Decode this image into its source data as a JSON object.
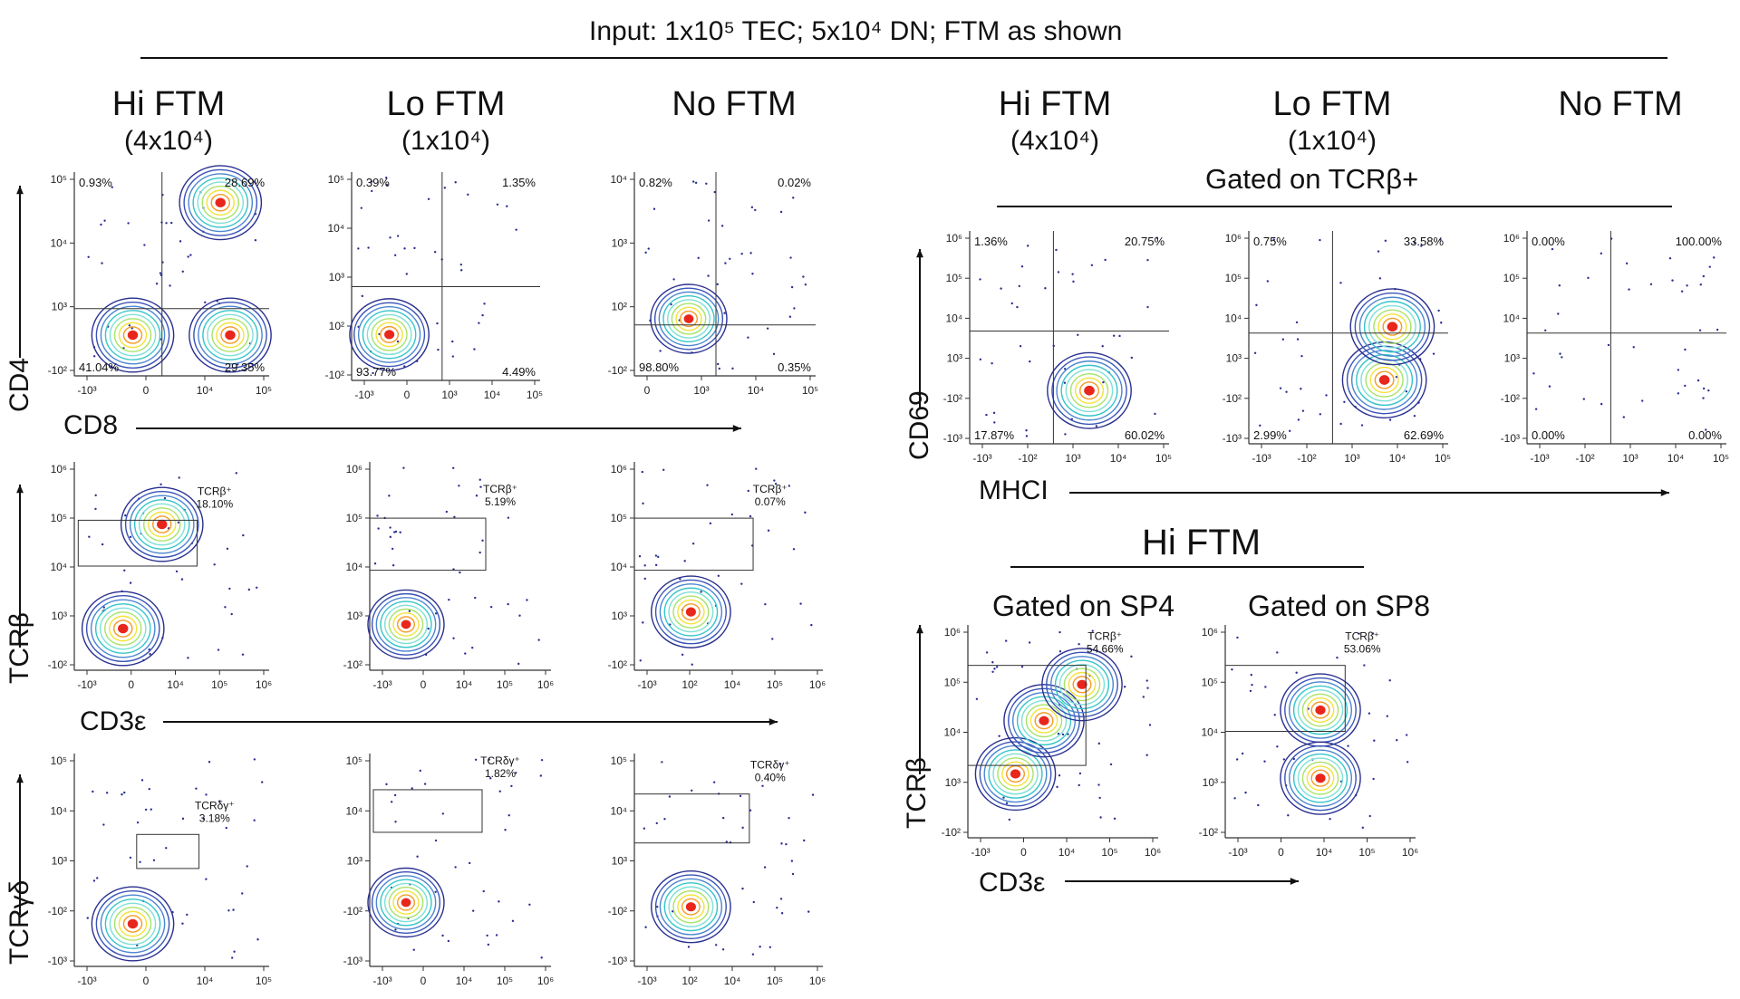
{
  "figure": {
    "input_label": "Input: 1x10⁵ TEC; 5x10⁴ DN; FTM as shown",
    "column_headers": [
      {
        "title": "Hi FTM",
        "sub": "(4x10⁴)"
      },
      {
        "title": "Lo FTM",
        "sub": "(1x10⁴)"
      },
      {
        "title": "No FTM",
        "sub": ""
      }
    ],
    "right_column_headers": [
      {
        "title": "Hi FTM",
        "sub": "(4x10⁴)"
      },
      {
        "title": "Lo FTM",
        "sub": "(1x10⁴)"
      },
      {
        "title": "No FTM",
        "sub": ""
      }
    ],
    "gated_tcrb": "Gated on TCRβ+",
    "hi_ftm_title": "Hi FTM",
    "gated_sp4": "Gated on SP4",
    "gated_sp8": "Gated on SP8",
    "axis_labels": {
      "cd4": "CD4",
      "cd8": "CD8",
      "tcrb": "TCRβ",
      "cd3e": "CD3ε",
      "tcrgd": "TCRγδ",
      "cd69": "CD69",
      "mhci": "MHCI"
    },
    "colors": {
      "contour_outer": "#2a2f8f",
      "contour_mid": "#36c5c9",
      "contour_core": "#e8261c"
    }
  },
  "chart_data": [
    {
      "type": "scatter",
      "id": "cd4cd8_hi",
      "xlabel": "CD8",
      "ylabel": "CD4",
      "x_ticks": [
        "-10³",
        "0",
        "10⁴",
        "10⁵"
      ],
      "y_ticks": [
        "10⁵",
        "10⁴",
        "10³",
        "-10²"
      ],
      "quadrants": {
        "upper_left": "0.93%",
        "upper_right": "28.69%",
        "lower_left": "41.04%",
        "lower_right": "29.35%"
      },
      "populations": [
        {
          "x": 0.3,
          "y": 0.2
        },
        {
          "x": 0.8,
          "y": 0.2
        },
        {
          "x": 0.75,
          "y": 0.85
        }
      ]
    },
    {
      "type": "scatter",
      "id": "cd4cd8_lo",
      "xlabel": "CD8",
      "ylabel": "CD4",
      "x_ticks": [
        "-10³",
        "0",
        "10³",
        "10⁴",
        "10⁵"
      ],
      "y_ticks": [
        "10⁵",
        "10⁴",
        "10³",
        "10²",
        "-10²"
      ],
      "quadrants": {
        "upper_left": "0.39%",
        "upper_right": "1.35%",
        "lower_left": "93.77%",
        "lower_right": "4.49%"
      },
      "populations": [
        {
          "x": 0.2,
          "y": 0.22
        }
      ]
    },
    {
      "type": "scatter",
      "id": "cd4cd8_no",
      "xlabel": "CD8",
      "ylabel": "CD4",
      "x_ticks": [
        "0",
        "10³",
        "10⁴",
        "10⁵"
      ],
      "y_ticks": [
        "10⁴",
        "10³",
        "10²",
        "-10²"
      ],
      "quadrants": {
        "upper_left": "0.82%",
        "upper_right": "0.02%",
        "lower_left": "98.80%",
        "lower_right": "0.35%"
      },
      "populations": [
        {
          "x": 0.3,
          "y": 0.28
        }
      ]
    },
    {
      "type": "scatter",
      "id": "tcrb_hi",
      "xlabel": "CD3ε",
      "ylabel": "TCRβ",
      "x_ticks": [
        "-10³",
        "0",
        "10⁴",
        "10⁵",
        "10⁶"
      ],
      "y_ticks": [
        "10⁶",
        "10⁵",
        "10⁴",
        "10³",
        "-10²"
      ],
      "gate_label": "TCRβ⁺",
      "gate_value": "18.10%",
      "populations": [
        {
          "x": 0.25,
          "y": 0.2
        },
        {
          "x": 0.45,
          "y": 0.7
        }
      ]
    },
    {
      "type": "scatter",
      "id": "tcrb_lo",
      "xlabel": "CD3ε",
      "ylabel": "TCRβ",
      "x_ticks": [
        "-10³",
        "0",
        "10⁴",
        "10⁵",
        "10⁶"
      ],
      "y_ticks": [
        "10⁶",
        "10⁵",
        "10⁴",
        "10³",
        "-10²"
      ],
      "gate_label": "TCRβ⁺",
      "gate_value": "5.19%",
      "populations": [
        {
          "x": 0.2,
          "y": 0.22
        }
      ]
    },
    {
      "type": "scatter",
      "id": "tcrb_no",
      "xlabel": "CD3ε",
      "ylabel": "TCRβ",
      "x_ticks": [
        "-10³",
        "10²",
        "10⁴",
        "10⁵",
        "10⁶"
      ],
      "y_ticks": [
        "10⁶",
        "10⁵",
        "10⁴",
        "10³",
        "-10²"
      ],
      "gate_label": "TCRβ⁺",
      "gate_value": "0.07%",
      "populations": [
        {
          "x": 0.3,
          "y": 0.28
        }
      ]
    },
    {
      "type": "scatter",
      "id": "tcrgd_hi",
      "xlabel": "CD3ε",
      "ylabel": "TCRγδ",
      "x_ticks": [
        "-10³",
        "0",
        "10⁴",
        "10⁵"
      ],
      "y_ticks": [
        "10⁵",
        "10⁴",
        "10³",
        "-10²",
        "-10³"
      ],
      "gate_label": "TCRδγ⁺",
      "gate_value": "3.18%",
      "populations": [
        {
          "x": 0.3,
          "y": 0.2
        }
      ]
    },
    {
      "type": "scatter",
      "id": "tcrgd_lo",
      "xlabel": "CD3ε",
      "ylabel": "TCRγδ",
      "x_ticks": [
        "-10³",
        "0",
        "10⁴",
        "10⁵",
        "10⁶"
      ],
      "y_ticks": [
        "10⁵",
        "10⁴",
        "10³",
        "-10²",
        "-10³"
      ],
      "gate_label": "TCRδγ⁺",
      "gate_value": "1.82%",
      "populations": [
        {
          "x": 0.2,
          "y": 0.3
        }
      ]
    },
    {
      "type": "scatter",
      "id": "tcrgd_no",
      "xlabel": "CD3ε",
      "ylabel": "TCRγδ",
      "x_ticks": [
        "-10³",
        "10²",
        "10⁴",
        "10⁵",
        "10⁶"
      ],
      "y_ticks": [
        "10⁵",
        "10⁴",
        "10³",
        "-10²",
        "-10³"
      ],
      "gate_label": "TCRδγ⁺",
      "gate_value": "0.40%",
      "populations": [
        {
          "x": 0.3,
          "y": 0.28
        }
      ]
    },
    {
      "type": "scatter",
      "id": "cd69_hi",
      "xlabel": "MHCI",
      "ylabel": "CD69",
      "x_ticks": [
        "-10³",
        "-10²",
        "10³",
        "10⁴",
        "10⁵"
      ],
      "y_ticks": [
        "10⁶",
        "10⁵",
        "10⁴",
        "10³",
        "-10²",
        "-10³"
      ],
      "quadrants": {
        "upper_left": "1.36%",
        "upper_right": "20.75%",
        "lower_left": "17.87%",
        "lower_right": "60.02%"
      },
      "populations": [
        {
          "x": 0.6,
          "y": 0.25
        }
      ]
    },
    {
      "type": "scatter",
      "id": "cd69_lo",
      "xlabel": "MHCI",
      "ylabel": "CD69",
      "x_ticks": [
        "-10³",
        "-10²",
        "10³",
        "10⁴",
        "10⁵"
      ],
      "y_ticks": [
        "10⁶",
        "10⁵",
        "10⁴",
        "10³",
        "-10²",
        "-10³"
      ],
      "quadrants": {
        "upper_left": "0.75%",
        "upper_right": "33.58%",
        "lower_left": "2.99%",
        "lower_right": "62.69%"
      },
      "populations": [
        {
          "x": 0.68,
          "y": 0.3
        },
        {
          "x": 0.72,
          "y": 0.55
        }
      ]
    },
    {
      "type": "scatter",
      "id": "cd69_no",
      "xlabel": "MHCI",
      "ylabel": "CD69",
      "x_ticks": [
        "-10³",
        "-10²",
        "10³",
        "10⁴",
        "10⁵"
      ],
      "y_ticks": [
        "10⁶",
        "10⁵",
        "10⁴",
        "10³",
        "-10²",
        "-10³"
      ],
      "quadrants": {
        "upper_left": "0.00%",
        "upper_right": "100.00%",
        "lower_left": "0.00%",
        "lower_right": "0.00%"
      },
      "populations": []
    },
    {
      "type": "scatter",
      "id": "sp4_tcrb",
      "xlabel": "CD3ε",
      "ylabel": "TCRβ",
      "x_ticks": [
        "-10³",
        "0",
        "10⁴",
        "10⁵",
        "10⁶"
      ],
      "y_ticks": [
        "10⁶",
        "10⁵",
        "10⁴",
        "10³",
        "-10²"
      ],
      "gate_label": "TCRβ⁺",
      "gate_value": "54.66%",
      "populations": [
        {
          "x": 0.25,
          "y": 0.3
        },
        {
          "x": 0.4,
          "y": 0.55
        },
        {
          "x": 0.6,
          "y": 0.72
        }
      ]
    },
    {
      "type": "scatter",
      "id": "sp8_tcrb",
      "xlabel": "CD3ε",
      "ylabel": "TCRβ",
      "x_ticks": [
        "-10³",
        "0",
        "10⁴",
        "10⁵",
        "10⁶"
      ],
      "y_ticks": [
        "10⁶",
        "10⁵",
        "10⁴",
        "10³",
        "-10²"
      ],
      "gate_label": "TCRβ⁺",
      "gate_value": "53.06%",
      "populations": [
        {
          "x": 0.5,
          "y": 0.6
        },
        {
          "x": 0.5,
          "y": 0.28
        }
      ]
    }
  ]
}
